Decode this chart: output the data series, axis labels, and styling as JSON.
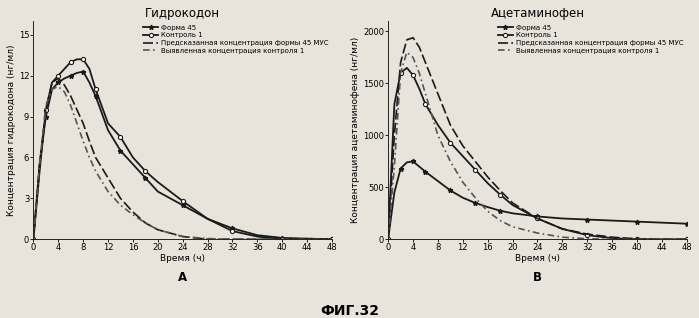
{
  "title_left": "Гидрокодон",
  "title_right": "Ацетаминофен",
  "fig_label": "ФИГ.32",
  "label_A": "А",
  "label_B": "В",
  "ylabel_left": "Концентрация гидрокодона (нг/мл)",
  "ylabel_right": "Концентрация ацетаминофена (нг/мл)",
  "xlabel": "Время (ч)",
  "legend_entries": [
    "Форма 45",
    "Контроль 1",
    "Предсказанная концентрация формы 45 МУС",
    "Выявленная концентрация контроля 1"
  ],
  "hydro_time": [
    0,
    1,
    2,
    3,
    4,
    5,
    6,
    7,
    8,
    9,
    10,
    12,
    14,
    16,
    18,
    20,
    24,
    28,
    32,
    36,
    40,
    44,
    48
  ],
  "hydro_forma45": [
    0,
    5.5,
    9.0,
    11.0,
    11.5,
    11.8,
    12.0,
    12.2,
    12.3,
    11.5,
    10.5,
    8.0,
    6.5,
    5.5,
    4.5,
    3.5,
    2.5,
    1.5,
    0.8,
    0.3,
    0.1,
    0.05,
    0.0
  ],
  "hydro_control1": [
    0,
    5.0,
    9.5,
    11.5,
    12.0,
    12.5,
    13.0,
    13.2,
    13.2,
    12.5,
    11.0,
    8.5,
    7.5,
    6.0,
    5.0,
    4.2,
    2.8,
    1.5,
    0.6,
    0.2,
    0.0,
    0.0,
    0.0
  ],
  "hydro_pred45": [
    0,
    5.5,
    9.5,
    11.5,
    11.8,
    11.3,
    10.5,
    9.5,
    8.5,
    7.2,
    6.0,
    4.5,
    3.0,
    2.0,
    1.2,
    0.7,
    0.2,
    0.0,
    0.0,
    0.0,
    0.0,
    0.0,
    0.0
  ],
  "hydro_revealed": [
    0,
    5.5,
    9.8,
    11.0,
    11.2,
    10.8,
    9.8,
    8.5,
    7.2,
    6.0,
    5.0,
    3.5,
    2.5,
    1.8,
    1.2,
    0.7,
    0.2,
    0.05,
    0.0,
    0.0,
    0.0,
    0.0,
    0.0
  ],
  "hydro_ylim": [
    0,
    16
  ],
  "hydro_yticks": [
    0,
    3,
    6,
    9,
    12,
    15
  ],
  "acet_time": [
    0,
    1,
    2,
    3,
    4,
    5,
    6,
    8,
    10,
    12,
    14,
    16,
    18,
    20,
    24,
    28,
    32,
    36,
    40,
    44,
    48
  ],
  "acet_forma45": [
    0,
    450,
    680,
    740,
    750,
    700,
    650,
    560,
    470,
    400,
    350,
    310,
    275,
    250,
    220,
    200,
    190,
    180,
    170,
    160,
    150
  ],
  "acet_control1": [
    0,
    1300,
    1600,
    1650,
    1580,
    1450,
    1300,
    1100,
    930,
    800,
    670,
    540,
    430,
    330,
    200,
    100,
    40,
    10,
    0,
    0,
    0
  ],
  "acet_pred45": [
    0,
    1000,
    1700,
    1920,
    1940,
    1850,
    1700,
    1400,
    1100,
    900,
    750,
    600,
    470,
    350,
    200,
    100,
    50,
    20,
    5,
    0,
    0
  ],
  "acet_revealed": [
    0,
    700,
    1600,
    1800,
    1750,
    1600,
    1400,
    1000,
    750,
    550,
    400,
    270,
    180,
    120,
    60,
    20,
    5,
    0,
    0,
    0,
    0
  ],
  "acet_ylim": [
    0,
    2100
  ],
  "acet_yticks": [
    0,
    500,
    1000,
    1500,
    2000
  ],
  "xticks": [
    0,
    4,
    8,
    12,
    16,
    20,
    24,
    28,
    32,
    36,
    40,
    44,
    48
  ],
  "color_solid": "#1a1a1a",
  "color_dashed_dark": "#1a1a1a",
  "color_dashed_gray": "#555555",
  "bg_color": "#e8e4dc",
  "lw_solid": 1.3,
  "lw_dashed": 1.2,
  "fontsize_title": 8.5,
  "fontsize_axis": 6.5,
  "fontsize_tick": 6.0,
  "fontsize_legend": 5.0,
  "fontsize_label": 8.5,
  "fontsize_fig": 10
}
